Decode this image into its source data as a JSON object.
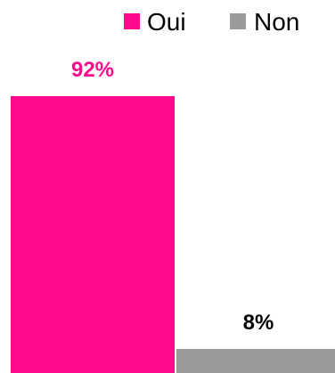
{
  "chart_data": {
    "type": "bar",
    "categories": [
      "Oui",
      "Non"
    ],
    "values": [
      92,
      8
    ],
    "value_labels": [
      "92%",
      "8%"
    ],
    "legend": [
      "Oui",
      "Non"
    ],
    "legend_position": "top-right",
    "colors": [
      "#FF0A8C",
      "#9B9B9B"
    ],
    "label_colors": [
      "#FF0A8C",
      "#000000"
    ],
    "ylim": [
      0,
      100
    ],
    "grid": false,
    "axes_visible": false
  }
}
